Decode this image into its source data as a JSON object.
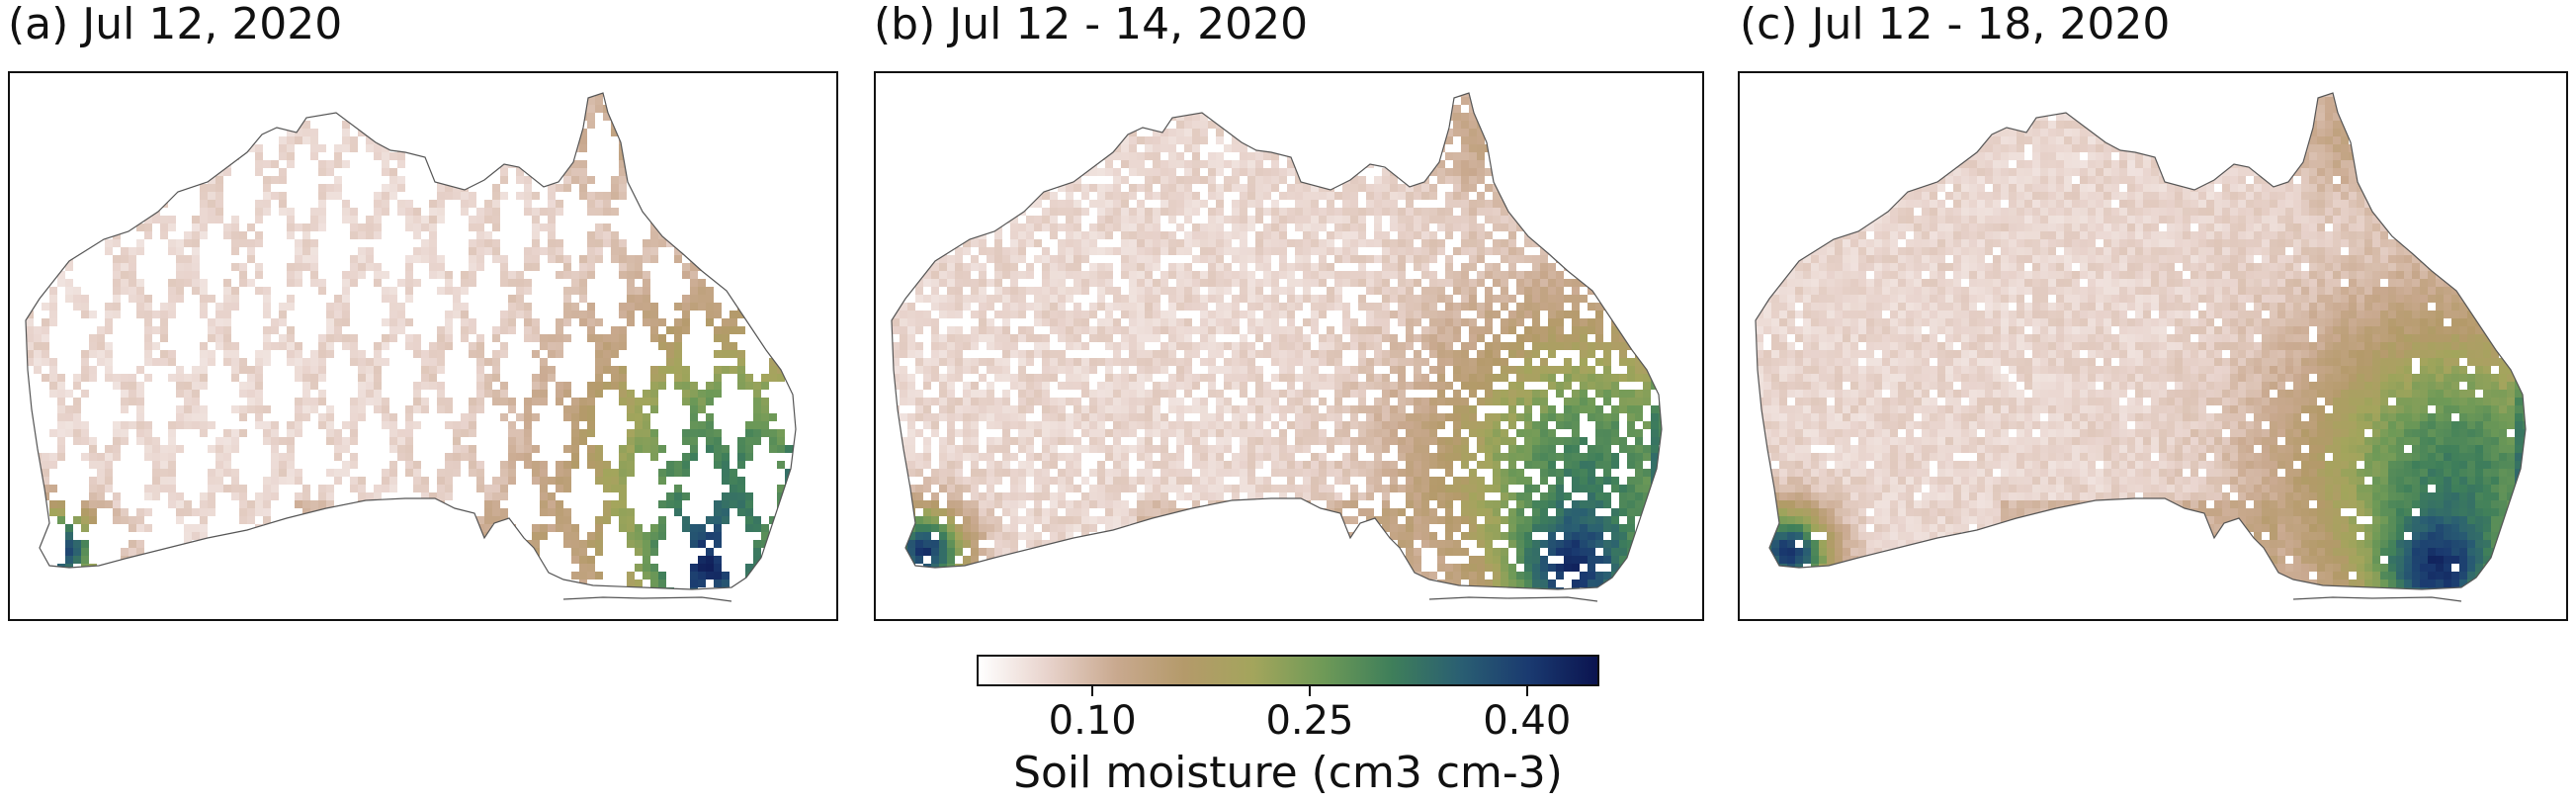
{
  "chart_data": [
    {
      "type": "heatmap",
      "panel": "a",
      "title": "(a) Jul 12, 2020",
      "coverage": "sparse",
      "description_values": {
        "typical_inland": 0.07,
        "wet_southeast": 0.3,
        "wet_southwest_tip": 0.38
      }
    },
    {
      "type": "heatmap",
      "panel": "b",
      "title": "(b) Jul 12 - 14, 2020",
      "coverage": "dense",
      "description_values": {
        "typical_inland": 0.07,
        "wet_southeast": 0.3,
        "wet_southwest_tip": 0.4
      }
    },
    {
      "type": "heatmap",
      "panel": "c",
      "title": "(c) Jul 12 - 18, 2020",
      "coverage": "near-complete",
      "description_values": {
        "typical_inland": 0.07,
        "wet_southeast": 0.3,
        "wet_southwest_tip": 0.42
      }
    }
  ],
  "colorbar": {
    "label": "Soil moisture (cm3 cm-3)",
    "range": [
      0.02,
      0.45
    ],
    "ticks": [
      {
        "value": 0.1,
        "label": "0.10"
      },
      {
        "value": 0.25,
        "label": "0.25"
      },
      {
        "value": 0.4,
        "label": "0.40"
      }
    ],
    "stops": [
      "#ffffff",
      "#e8d3cc",
      "#c9a98f",
      "#b49a6a",
      "#a3a55c",
      "#6f9a57",
      "#3f7f5a",
      "#2a5f72",
      "#1a3a70",
      "#0b1450"
    ]
  }
}
